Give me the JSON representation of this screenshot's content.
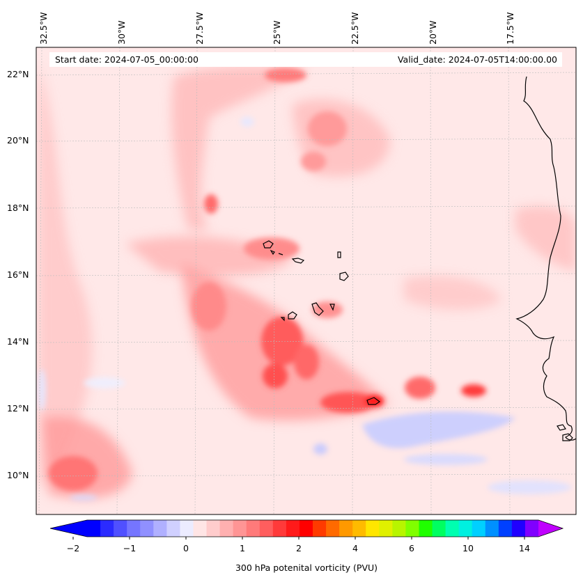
{
  "header": {
    "start_date": "Start date: 2024-07-05_00:00:00",
    "valid_date": "Valid_date: 2024-07-05T14:00:00.00"
  },
  "axes": {
    "longitude_labels": [
      "32.5°W",
      "30°W",
      "27.5°W",
      "25°W",
      "22.5°W",
      "20°W",
      "17.5°W"
    ],
    "latitude_labels": [
      "22°N",
      "20°N",
      "18°N",
      "16°N",
      "14°N",
      "12°N",
      "10°N"
    ]
  },
  "colorbar": {
    "label": "300 hPa potenital vorticity (PVU)",
    "tick_labels": [
      "−2",
      "−1",
      "0",
      "1",
      "2",
      "4",
      "6",
      "10",
      "14"
    ],
    "colors": [
      "#0000ff",
      "#2b2bff",
      "#5050ff",
      "#7575ff",
      "#9090ff",
      "#b0b0ff",
      "#d0d0ff",
      "#ececff",
      "#ffe5e5",
      "#ffcccc",
      "#ffb0b0",
      "#ff9595",
      "#ff7a7a",
      "#ff5e5e",
      "#ff3a3a",
      "#ff1a1a",
      "#ff0000",
      "#ff3a00",
      "#ff6a00",
      "#ff9900",
      "#ffbb00",
      "#ffe600",
      "#e0f000",
      "#b8f500",
      "#80ff00",
      "#20ff00",
      "#00ff60",
      "#00ffb0",
      "#00f0e0",
      "#00d0ff",
      "#0090ff",
      "#0040ff",
      "#2000ff",
      "#8000ff"
    ],
    "extend_low_color": "#0000ff",
    "extend_high_color": "#c000ff"
  },
  "colors": {
    "background_field": "#ffe7e7",
    "low_pv_blue": "#e6e8ff",
    "coastline": "#000000"
  }
}
